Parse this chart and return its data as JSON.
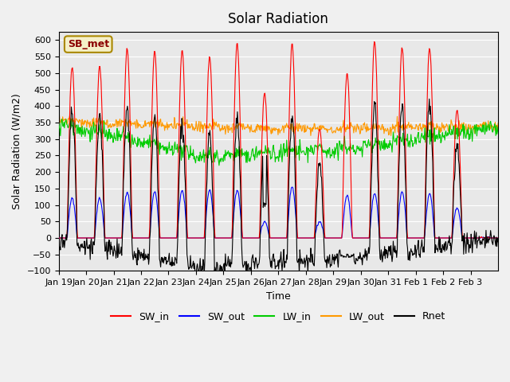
{
  "title": "Solar Radiation",
  "xlabel": "Time",
  "ylabel": "Solar Radiation (W/m2)",
  "station_label": "SB_met",
  "ylim": [
    -100,
    625
  ],
  "yticks": [
    -100,
    -50,
    0,
    50,
    100,
    150,
    200,
    250,
    300,
    350,
    400,
    450,
    500,
    550,
    600
  ],
  "xtick_labels": [
    "Jan 19",
    "Jan 20",
    "Jan 21",
    "Jan 22",
    "Jan 23",
    "Jan 24",
    "Jan 25",
    "Jan 26",
    "Jan 27",
    "Jan 28",
    "Jan 29",
    "Jan 30",
    "Jan 31",
    "Feb 1",
    "Feb 2",
    "Feb 3"
  ],
  "colors": {
    "SW_in": "#ff0000",
    "SW_out": "#0000ff",
    "LW_in": "#00cc00",
    "LW_out": "#ff9900",
    "Rnet": "#000000"
  },
  "background_color": "#e8e8e8",
  "fig_background": "#f0f0f0",
  "sw_in_peaks": [
    520,
    520,
    575,
    565,
    570,
    550,
    590,
    440,
    590,
    330,
    500,
    595,
    580,
    575,
    390,
    0
  ],
  "sw_out_peaks": [
    120,
    120,
    140,
    140,
    145,
    145,
    145,
    50,
    155,
    50,
    130,
    135,
    140,
    135,
    90,
    0
  ]
}
